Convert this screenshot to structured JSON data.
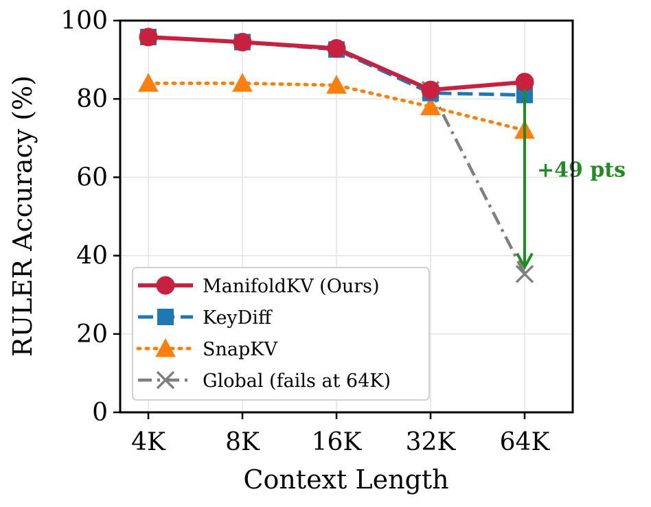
{
  "chart_data": {
    "type": "line",
    "title": "",
    "xlabel": "Context Length",
    "ylabel": "RULER Accuracy (%)",
    "categories": [
      "4K",
      "8K",
      "16K",
      "32K",
      "64K"
    ],
    "ylim": [
      0,
      100
    ],
    "yticks": [
      0,
      20,
      40,
      60,
      80,
      100
    ],
    "grid": true,
    "legend_position": "lower-left",
    "series": [
      {
        "name": "ManifoldKV (Ours)",
        "values": [
          95.8,
          94.5,
          92.9,
          82.3,
          84.3
        ],
        "color": "#c8203f",
        "line_style": "solid",
        "marker": "circle"
      },
      {
        "name": "KeyDiff",
        "values": [
          95.8,
          94.5,
          92.6,
          81.5,
          81.0
        ],
        "color": "#1f77b4",
        "line_style": "dashed",
        "marker": "square"
      },
      {
        "name": "SnapKV",
        "values": [
          84.0,
          84.0,
          83.5,
          78.0,
          72.0
        ],
        "color": "#ff7f0e",
        "line_style": "dotted",
        "marker": "triangle"
      },
      {
        "name": "Global (fails at 64K)",
        "values": [
          null,
          null,
          null,
          82.3,
          35.3
        ],
        "color": "#7f7f7f",
        "line_style": "dashdot",
        "marker": "x"
      }
    ],
    "annotations": [
      {
        "text": "+49 pts",
        "category": "64K",
        "from_value": 84.3,
        "to_value": 35.3,
        "color": "#228b22"
      }
    ]
  }
}
